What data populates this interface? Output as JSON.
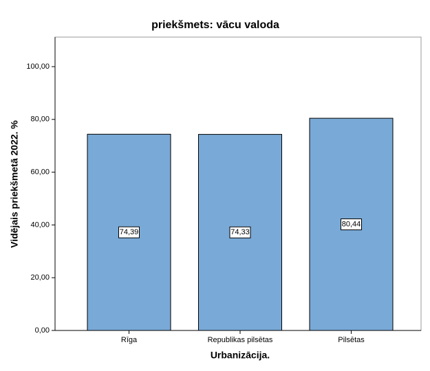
{
  "chart_data": {
    "type": "bar",
    "title": "priekšmets: vācu valoda",
    "x_label": "Urbanizācija.",
    "y_label": "Vidējais priekšmetā 2022. %",
    "categories": [
      "Rīga",
      "Republikas pilsētas",
      "Pilsētas"
    ],
    "values": [
      74.39,
      74.33,
      80.44
    ],
    "value_labels": [
      "74,39",
      "74,33",
      "80,44"
    ],
    "color": "#79a9d6",
    "ylim": [
      0,
      111.2
    ],
    "yticks": [
      {
        "value": 0,
        "label": "0,00"
      },
      {
        "value": 20,
        "label": "20,00"
      },
      {
        "value": 40,
        "label": "40,00"
      },
      {
        "value": 60,
        "label": "60,00"
      },
      {
        "value": 80,
        "label": "80,00"
      },
      {
        "value": 100,
        "label": "100,00"
      }
    ],
    "grid": false
  }
}
